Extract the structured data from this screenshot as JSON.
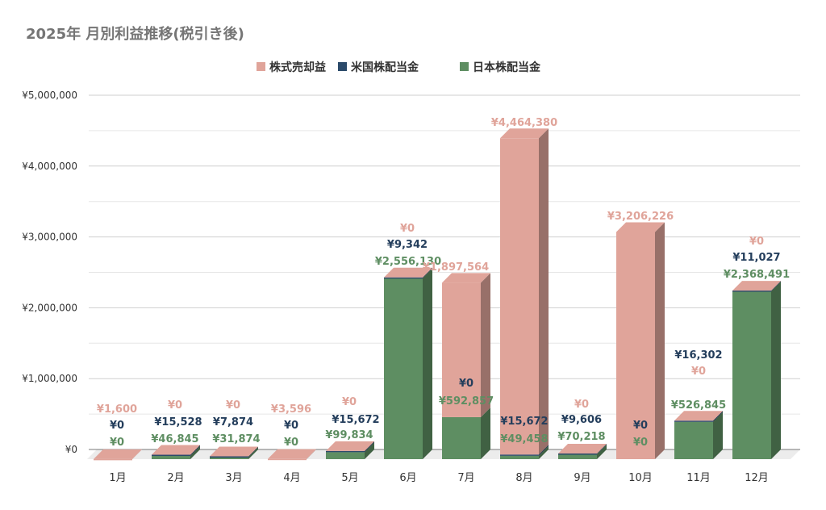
{
  "chart_data": {
    "type": "bar",
    "stacked": true,
    "style": "3d-columns",
    "title": "2025年 月別利益推移(税引き後)",
    "xlabel": "",
    "ylabel": "",
    "ylim": [
      0,
      5000000
    ],
    "yticks": [
      "¥0",
      "¥1,000,000",
      "¥2,000,000",
      "¥3,000,000",
      "¥4,000,000",
      "¥5,000,000"
    ],
    "grid": true,
    "legend": "top",
    "categories": [
      "1月",
      "2月",
      "3月",
      "4月",
      "5月",
      "6月",
      "7月",
      "8月",
      "9月",
      "10月",
      "11月",
      "12月"
    ],
    "series": [
      {
        "name": "日本株配当金",
        "color": "#5e8e62",
        "values": [
          0,
          46845,
          31874,
          0,
          99834,
          2556130,
          592857,
          49458,
          70218,
          0,
          526845,
          2368491
        ],
        "labels": [
          "¥0",
          "¥46,845",
          "¥31,874",
          "¥0",
          "¥99,834",
          "¥2,556,130",
          "¥592,857",
          "¥49,458",
          "¥70,218",
          "¥0",
          "¥526,845",
          "¥2,368,491"
        ]
      },
      {
        "name": "米国株配当金",
        "color": "#2b4a6a",
        "values": [
          0,
          15528,
          7874,
          0,
          15672,
          9342,
          0,
          15672,
          9606,
          0,
          16302,
          11027
        ],
        "labels": [
          "¥0",
          "¥15,528",
          "¥7,874",
          "¥0",
          "¥15,672",
          "¥9,342",
          "¥0",
          "¥15,672",
          "¥9,606",
          "¥0",
          "¥16,302",
          "¥11,027"
        ]
      },
      {
        "name": "株式売却益",
        "color": "#e0a49a",
        "values": [
          1600,
          0,
          0,
          3596,
          0,
          0,
          1897564,
          4464380,
          0,
          3206226,
          0,
          0
        ],
        "labels": [
          "¥1,600",
          "¥0",
          "¥0",
          "¥3,596",
          "¥0",
          "¥0",
          "¥1,897,564",
          "¥4,464,380",
          "¥0",
          "¥3,206,226",
          "¥0",
          "¥0"
        ]
      }
    ]
  }
}
